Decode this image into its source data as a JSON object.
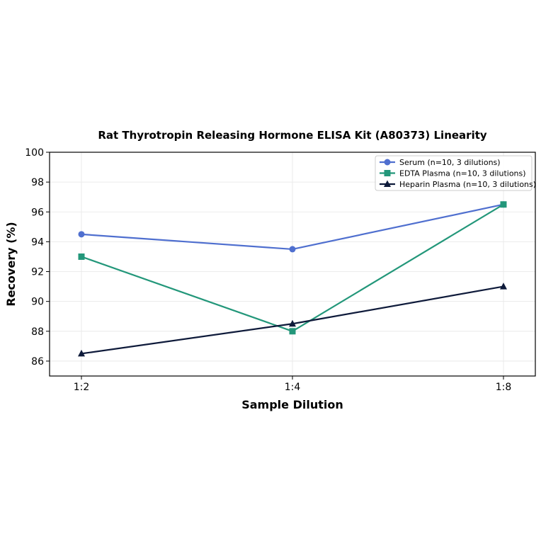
{
  "chart_data": {
    "type": "line",
    "title": "Rat Thyrotropin Releasing Hormone ELISA Kit (A80373) Linearity",
    "xlabel": "Sample Dilution",
    "ylabel": "Recovery (%)",
    "categories": [
      "1:2",
      "1:4",
      "1:8"
    ],
    "ylim": [
      85,
      100
    ],
    "yticks": [
      86,
      88,
      90,
      92,
      94,
      96,
      98,
      100
    ],
    "grid": true,
    "legend_position": "top-right",
    "series": [
      {
        "name": "Serum (n=10, 3 dilutions)",
        "values": [
          94.5,
          93.5,
          96.5
        ],
        "color": "#4f6fcf",
        "marker": "circle"
      },
      {
        "name": "EDTA Plasma (n=10, 3 dilutions)",
        "values": [
          93.0,
          88.0,
          96.5
        ],
        "color": "#23977a",
        "marker": "square"
      },
      {
        "name": "Heparin Plasma (n=10, 3 dilutions)",
        "values": [
          86.5,
          88.5,
          91.0
        ],
        "color": "#0e1a3a",
        "marker": "triangle"
      }
    ]
  }
}
